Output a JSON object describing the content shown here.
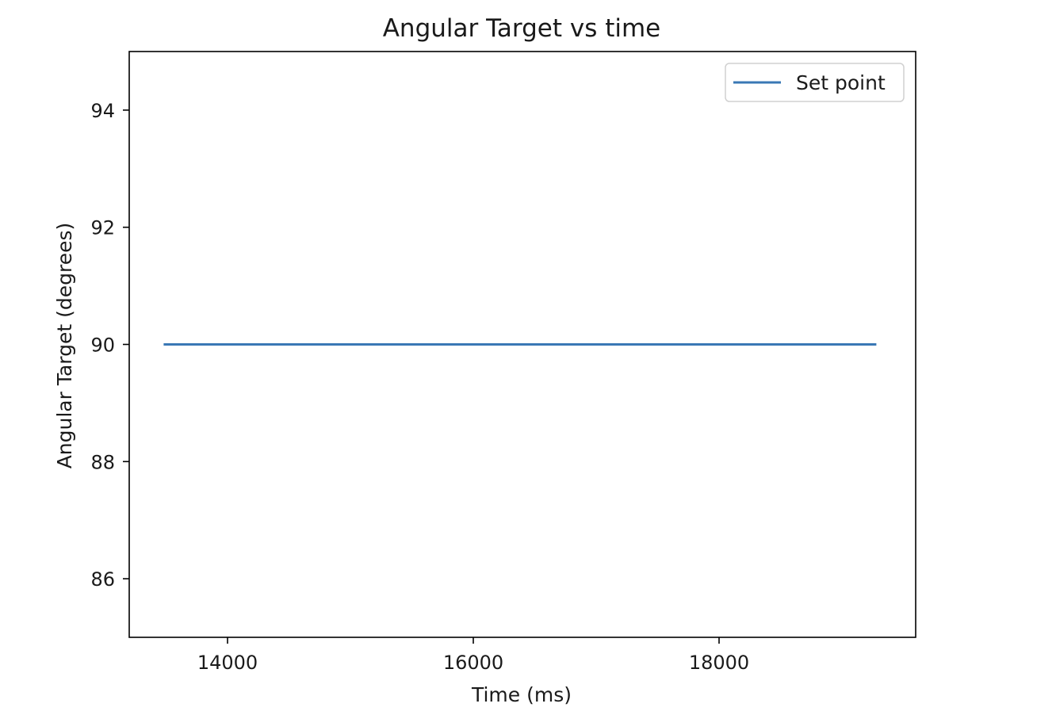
{
  "chart_data": {
    "type": "line",
    "title": "Angular Target vs time",
    "xlabel": "Time (ms)",
    "ylabel": "Angular Target (degrees)",
    "xlim": [
      13200,
      19600
    ],
    "ylim": [
      85.0,
      95.0
    ],
    "xticks": [
      14000,
      16000,
      18000
    ],
    "xtick_labels": [
      "14000",
      "16000",
      "18000"
    ],
    "yticks": [
      86,
      88,
      90,
      92,
      94
    ],
    "ytick_labels": [
      "86",
      "88",
      "90",
      "92",
      "94"
    ],
    "grid": false,
    "legend": {
      "placement": "upper-right",
      "entries": [
        "Set point"
      ]
    },
    "series": [
      {
        "name": "Set point",
        "color": "#3a78b5",
        "x": [
          13480,
          19280
        ],
        "y": [
          90,
          90
        ]
      }
    ]
  }
}
